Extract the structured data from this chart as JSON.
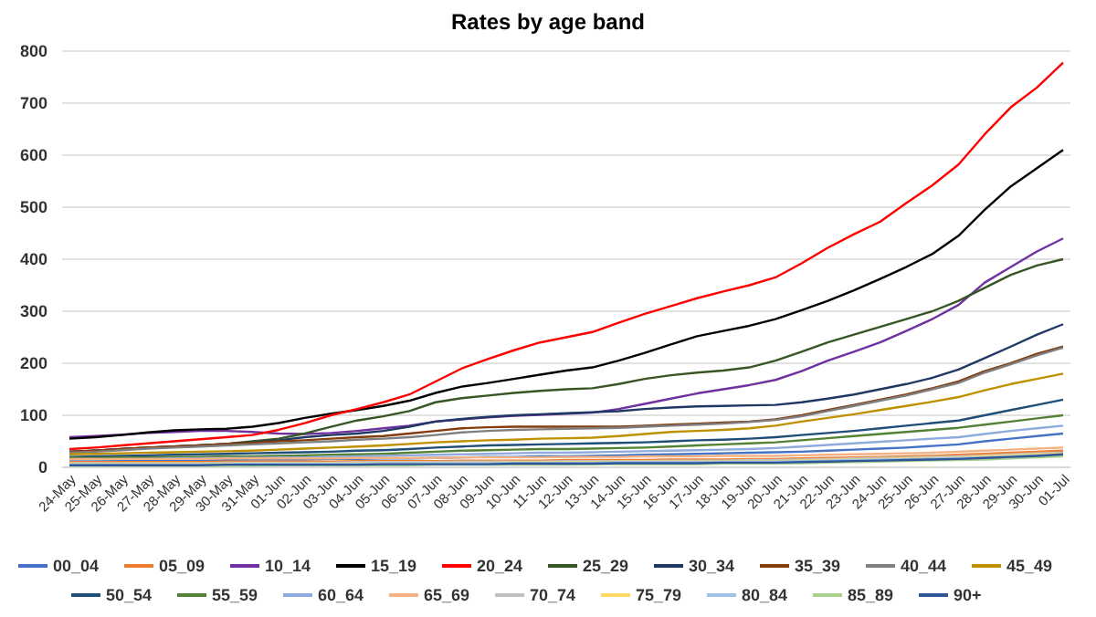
{
  "chart_data": {
    "type": "line",
    "title": "Rates by age band",
    "categories": [
      "24-May",
      "25-May",
      "26-May",
      "27-May",
      "28-May",
      "29-May",
      "30-May",
      "31-May",
      "01-Jun",
      "02-Jun",
      "03-Jun",
      "04-Jun",
      "05-Jun",
      "06-Jun",
      "07-Jun",
      "08-Jun",
      "09-Jun",
      "10-Jun",
      "11-Jun",
      "12-Jun",
      "13-Jun",
      "14-Jun",
      "15-Jun",
      "16-Jun",
      "17-Jun",
      "18-Jun",
      "19-Jun",
      "20-Jun",
      "21-Jun",
      "22-Jun",
      "23-Jun",
      "24-Jun",
      "25-Jun",
      "26-Jun",
      "27-Jun",
      "28-Jun",
      "29-Jun",
      "30-Jun",
      "01-Jul"
    ],
    "ylim": [
      0,
      800
    ],
    "yticks": [
      0,
      100,
      200,
      300,
      400,
      500,
      600,
      700,
      800
    ],
    "grid": "y",
    "legend": "bottom",
    "marker": "none",
    "line_style": "solid",
    "series": [
      {
        "name": "00_04",
        "color": "#4472c4",
        "values": [
          13,
          13,
          13,
          13,
          14,
          14,
          14,
          15,
          15,
          15,
          16,
          16,
          17,
          17,
          18,
          19,
          20,
          20,
          21,
          21,
          22,
          23,
          24,
          25,
          26,
          27,
          28,
          29,
          30,
          32,
          34,
          36,
          38,
          41,
          44,
          50,
          55,
          60,
          65
        ]
      },
      {
        "name": "05_09",
        "color": "#ed7d31",
        "values": [
          10,
          10,
          10,
          10,
          10,
          10,
          11,
          11,
          11,
          11,
          11,
          12,
          12,
          12,
          12,
          13,
          13,
          13,
          13,
          14,
          14,
          14,
          14,
          15,
          15,
          15,
          16,
          16,
          17,
          18,
          19,
          20,
          21,
          22,
          24,
          26,
          28,
          30,
          32
        ]
      },
      {
        "name": "10_14",
        "color": "#7030a0",
        "values": [
          58,
          60,
          63,
          66,
          68,
          70,
          70,
          68,
          65,
          64,
          66,
          70,
          75,
          80,
          88,
          92,
          96,
          99,
          101,
          103,
          105,
          112,
          122,
          132,
          142,
          150,
          158,
          168,
          185,
          205,
          222,
          240,
          262,
          285,
          312,
          355,
          385,
          415,
          440
        ]
      },
      {
        "name": "15_19",
        "color": "#000000",
        "values": [
          55,
          58,
          62,
          67,
          71,
          73,
          74,
          78,
          85,
          95,
          103,
          110,
          118,
          128,
          143,
          155,
          162,
          170,
          178,
          186,
          192,
          205,
          220,
          236,
          252,
          262,
          272,
          285,
          302,
          320,
          340,
          362,
          385,
          410,
          445,
          495,
          540,
          575,
          610
        ]
      },
      {
        "name": "20_24",
        "color": "#ff0000",
        "values": [
          35,
          38,
          42,
          46,
          50,
          54,
          58,
          62,
          72,
          85,
          100,
          112,
          125,
          140,
          165,
          190,
          208,
          225,
          240,
          250,
          260,
          278,
          295,
          310,
          325,
          338,
          350,
          365,
          392,
          422,
          448,
          472,
          508,
          542,
          582,
          640,
          692,
          730,
          778
        ]
      },
      {
        "name": "25_29",
        "color": "#375623",
        "values": [
          30,
          32,
          35,
          38,
          40,
          42,
          45,
          50,
          55,
          65,
          78,
          90,
          98,
          108,
          125,
          133,
          138,
          143,
          147,
          150,
          152,
          160,
          170,
          177,
          182,
          186,
          192,
          205,
          222,
          240,
          255,
          270,
          285,
          300,
          320,
          345,
          370,
          388,
          400
        ]
      },
      {
        "name": "30_34",
        "color": "#1f3864",
        "values": [
          30,
          32,
          35,
          38,
          40,
          42,
          45,
          48,
          52,
          58,
          62,
          65,
          70,
          78,
          88,
          93,
          97,
          100,
          102,
          104,
          106,
          108,
          112,
          115,
          117,
          118,
          119,
          120,
          125,
          132,
          140,
          150,
          160,
          172,
          188,
          210,
          232,
          255,
          275
        ]
      },
      {
        "name": "35_39",
        "color": "#843c0c",
        "values": [
          30,
          32,
          35,
          38,
          40,
          42,
          45,
          47,
          50,
          52,
          55,
          58,
          60,
          65,
          70,
          75,
          77,
          78,
          78,
          78,
          78,
          78,
          80,
          82,
          84,
          86,
          88,
          92,
          100,
          110,
          120,
          130,
          140,
          152,
          165,
          185,
          200,
          218,
          232
        ]
      },
      {
        "name": "40_44",
        "color": "#7f7f7f",
        "values": [
          28,
          30,
          33,
          36,
          38,
          40,
          42,
          44,
          46,
          48,
          50,
          53,
          55,
          58,
          62,
          67,
          70,
          72,
          73,
          74,
          75,
          76,
          78,
          80,
          82,
          84,
          87,
          91,
          98,
          108,
          118,
          128,
          138,
          150,
          162,
          182,
          198,
          215,
          230
        ]
      },
      {
        "name": "45_49",
        "color": "#bf9000",
        "values": [
          25,
          26,
          27,
          28,
          29,
          30,
          31,
          32,
          34,
          36,
          38,
          40,
          42,
          45,
          48,
          50,
          52,
          53,
          55,
          56,
          57,
          60,
          64,
          68,
          70,
          72,
          75,
          80,
          88,
          95,
          102,
          110,
          118,
          126,
          135,
          148,
          160,
          170,
          180
        ]
      },
      {
        "name": "50_54",
        "color": "#1f4e79",
        "values": [
          20,
          21,
          22,
          23,
          24,
          25,
          26,
          27,
          28,
          29,
          30,
          32,
          33,
          35,
          38,
          40,
          42,
          43,
          44,
          45,
          46,
          47,
          48,
          50,
          52,
          53,
          55,
          58,
          62,
          66,
          70,
          75,
          80,
          85,
          90,
          100,
          110,
          120,
          130
        ]
      },
      {
        "name": "55_59",
        "color": "#548235",
        "values": [
          18,
          18,
          19,
          19,
          20,
          20,
          21,
          21,
          22,
          23,
          24,
          25,
          26,
          28,
          30,
          32,
          33,
          34,
          35,
          35,
          36,
          37,
          38,
          40,
          42,
          44,
          46,
          48,
          52,
          56,
          60,
          64,
          68,
          72,
          76,
          82,
          88,
          94,
          100
        ]
      },
      {
        "name": "60_64",
        "color": "#8faadc",
        "values": [
          15,
          15,
          16,
          16,
          17,
          17,
          18,
          18,
          19,
          19,
          20,
          21,
          22,
          23,
          24,
          25,
          26,
          27,
          28,
          28,
          29,
          30,
          31,
          32,
          33,
          34,
          35,
          37,
          40,
          43,
          46,
          49,
          52,
          55,
          58,
          64,
          70,
          75,
          80
        ]
      },
      {
        "name": "65_69",
        "color": "#f4b183",
        "values": [
          16,
          16,
          16,
          16,
          16,
          16,
          17,
          17,
          17,
          17,
          17,
          18,
          18,
          18,
          18,
          19,
          19,
          19,
          19,
          20,
          20,
          20,
          21,
          21,
          21,
          22,
          22,
          22,
          23,
          24,
          25,
          26,
          27,
          28,
          30,
          32,
          34,
          36,
          38
        ]
      },
      {
        "name": "70_74",
        "color": "#bfbfbf",
        "values": [
          8,
          8,
          8,
          8,
          8,
          8,
          9,
          9,
          9,
          9,
          9,
          10,
          10,
          10,
          10,
          11,
          11,
          11,
          11,
          12,
          12,
          12,
          12,
          13,
          13,
          13,
          14,
          14,
          15,
          16,
          17,
          18,
          19,
          20,
          21,
          23,
          25,
          27,
          28
        ]
      },
      {
        "name": "75_79",
        "color": "#ffd966",
        "values": [
          7,
          7,
          7,
          7,
          7,
          7,
          7,
          8,
          8,
          8,
          8,
          8,
          9,
          9,
          9,
          9,
          9,
          10,
          10,
          10,
          10,
          11,
          11,
          11,
          11,
          12,
          12,
          12,
          13,
          14,
          15,
          16,
          17,
          18,
          19,
          21,
          23,
          25,
          26
        ]
      },
      {
        "name": "80_84",
        "color": "#9dc3e6",
        "values": [
          6,
          6,
          6,
          6,
          6,
          6,
          6,
          7,
          7,
          7,
          7,
          7,
          8,
          8,
          8,
          8,
          8,
          9,
          9,
          9,
          9,
          10,
          10,
          10,
          10,
          11,
          11,
          11,
          12,
          13,
          14,
          15,
          16,
          17,
          18,
          19,
          21,
          23,
          24
        ]
      },
      {
        "name": "85_89",
        "color": "#a9d18e",
        "values": [
          3,
          3,
          3,
          3,
          3,
          3,
          3,
          3,
          4,
          4,
          4,
          4,
          4,
          4,
          5,
          5,
          5,
          5,
          5,
          5,
          6,
          6,
          6,
          6,
          6,
          7,
          7,
          7,
          8,
          9,
          10,
          11,
          12,
          13,
          14,
          15,
          17,
          19,
          21
        ]
      },
      {
        "name": "90+",
        "color": "#2f5597",
        "values": [
          4,
          4,
          4,
          4,
          4,
          4,
          5,
          5,
          5,
          5,
          5,
          5,
          6,
          6,
          6,
          6,
          6,
          7,
          7,
          7,
          7,
          8,
          8,
          8,
          8,
          9,
          9,
          9,
          10,
          11,
          12,
          13,
          14,
          15,
          16,
          18,
          20,
          22,
          25
        ]
      }
    ]
  }
}
